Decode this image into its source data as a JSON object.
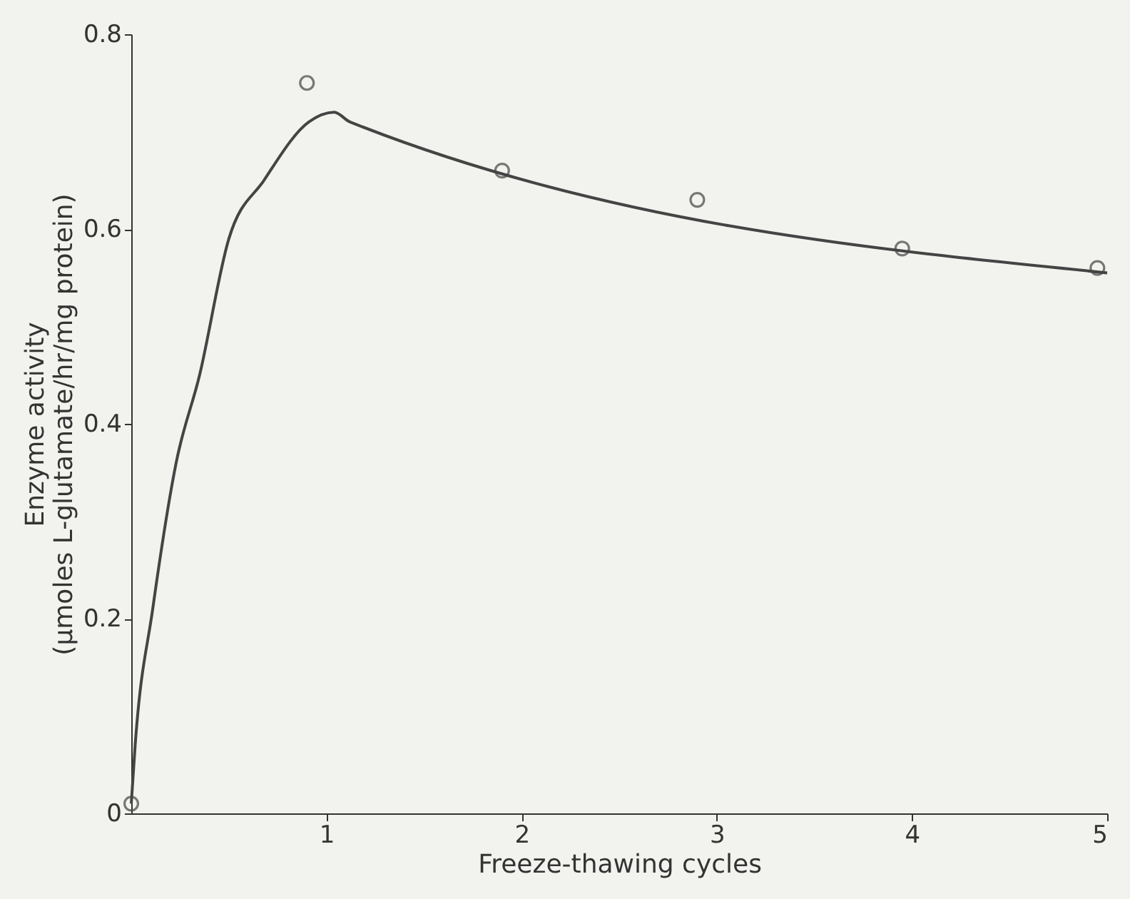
{
  "chart_data": {
    "type": "scatter",
    "xlabel": "Freeze-thawing cycles",
    "ylabel": "Enzyme activity\n(µmoles L-glutamate/hr/mg protein)",
    "xlim": [
      0,
      5
    ],
    "ylim": [
      0,
      0.8
    ],
    "xticks": [
      1,
      2,
      3,
      4,
      5
    ],
    "yticks": [
      0,
      0.2,
      0.4,
      0.6,
      0.8
    ],
    "grid": false,
    "series": [
      {
        "marker": "circle",
        "color": "#444444",
        "x": [
          0,
          0.9,
          1.9,
          2.9,
          3.95,
          4.95
        ],
        "values": [
          0.01,
          0.75,
          0.66,
          0.63,
          0.58,
          0.56
        ]
      },
      {
        "type": "line",
        "color": "#444444",
        "line_style": "solid",
        "x": [
          0,
          0.02,
          0.11,
          0.23,
          0.35,
          0.5,
          0.68,
          0.91,
          1.04,
          1.12,
          5
        ],
        "values": [
          0.01,
          0.07,
          0.21,
          0.36,
          0.45,
          0.59,
          0.65,
          0.71,
          0.72,
          0.71,
          0.555
        ]
      }
    ]
  }
}
